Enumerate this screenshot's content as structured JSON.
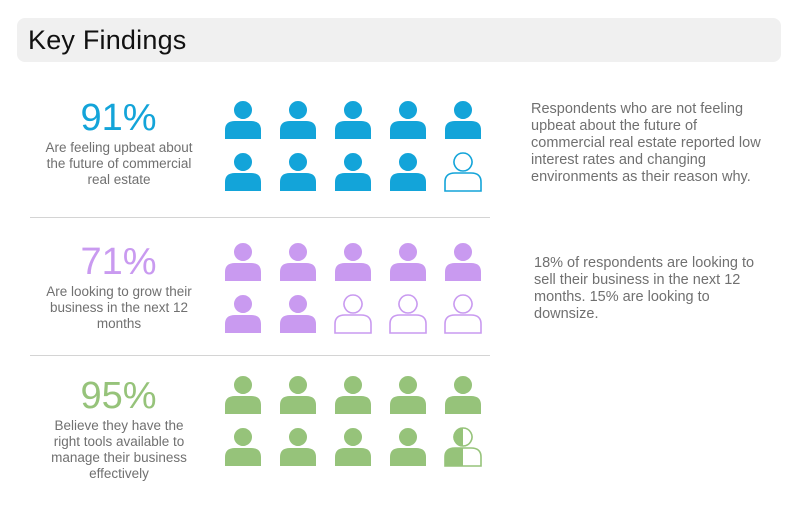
{
  "header": {
    "title": "Key Findings"
  },
  "findings": [
    {
      "percent": "91%",
      "value": 91,
      "description": "Are feeling upbeat about the future of commercial real estate",
      "color": "#13a4d9",
      "icon_fill": [
        1,
        1,
        1,
        1,
        1,
        1,
        1,
        1,
        1,
        0
      ],
      "note": "Respondents who are not feeling upbeat about the future of commercial real estate reported low interest rates and changing environments as their reason why."
    },
    {
      "percent": "71%",
      "value": 71,
      "description": "Are looking to grow their business in the next 12 months",
      "color": "#c99af0",
      "icon_fill": [
        1,
        1,
        1,
        1,
        1,
        1,
        1,
        0,
        0,
        0
      ],
      "note": "18% of respondents are looking to sell their business in the next 12 months. 15% are looking to downsize."
    },
    {
      "percent": "95%",
      "value": 95,
      "description": "Believe they have the right tools available to manage their business effectively",
      "color": "#96c37a",
      "icon_fill": [
        1,
        1,
        1,
        1,
        1,
        1,
        1,
        1,
        1,
        0.5
      ],
      "note": ""
    }
  ],
  "icon_name": "person-icon"
}
